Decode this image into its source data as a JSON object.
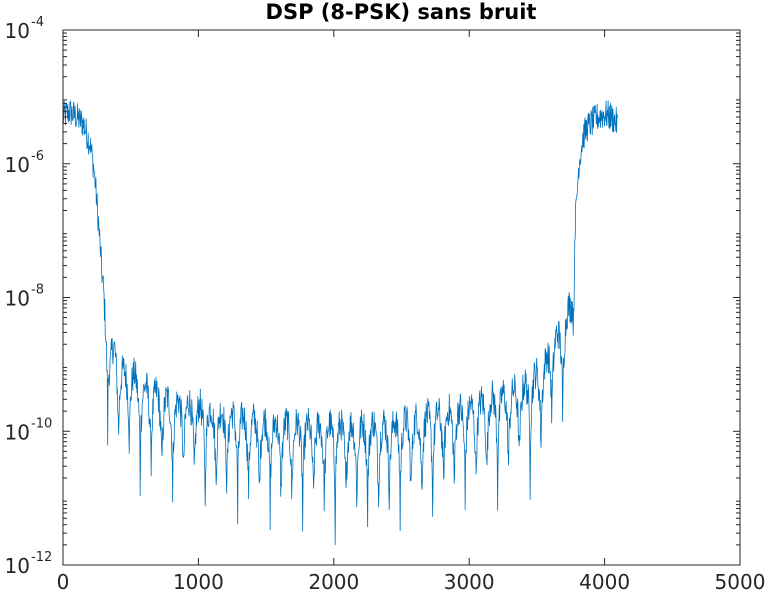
{
  "chart_data": {
    "type": "line",
    "title": "DSP (8-PSK) sans bruit",
    "xlabel": "",
    "ylabel": "",
    "xlim": [
      0,
      5000
    ],
    "ylim": [
      1e-12,
      0.0001
    ],
    "yscale": "log",
    "grid": false,
    "line_color": "#0072BD",
    "x_ticks": [
      0,
      1000,
      2000,
      3000,
      4000,
      5000
    ],
    "x_tick_labels": [
      "0",
      "1000",
      "2000",
      "3000",
      "4000",
      "5000"
    ],
    "y_ticks": [
      1e-12,
      1e-10,
      1e-08,
      1e-06,
      0.0001
    ],
    "y_tick_labels": [
      {
        "base": "10",
        "exp": "-12"
      },
      {
        "base": "10",
        "exp": "-10"
      },
      {
        "base": "10",
        "exp": "-8"
      },
      {
        "base": "10",
        "exp": "-6"
      },
      {
        "base": "10",
        "exp": "-4"
      }
    ],
    "series": [
      {
        "x": [
          0,
          50,
          100,
          150,
          200,
          230,
          260,
          290,
          320,
          350,
          380,
          420,
          460,
          500,
          550,
          600,
          700,
          800,
          900,
          1000,
          1100,
          1200,
          1300,
          1400,
          1500,
          1600,
          1700,
          1800,
          1900,
          2000,
          2100,
          2200,
          2300,
          2400,
          2500,
          2600,
          2700,
          2800,
          2900,
          3000,
          3100,
          3200,
          3300,
          3400,
          3500,
          3550,
          3600,
          3650,
          3700,
          3750,
          3780,
          3810,
          3840,
          3870,
          3900,
          3950,
          4000,
          4050,
          4095
        ],
        "y": [
          5e-06,
          6e-06,
          5e-06,
          4e-06,
          2e-06,
          8e-07,
          1.5e-07,
          2e-08,
          5e-09,
          1.5e-09,
          2e-09,
          1e-09,
          8e-10,
          9e-10,
          6e-10,
          5e-10,
          4e-10,
          3e-10,
          3e-10,
          2.5e-10,
          2.2e-10,
          2e-10,
          1.8e-10,
          1.6e-10,
          1.5e-10,
          1.4e-10,
          1.4e-10,
          1.3e-10,
          1.3e-10,
          1.3e-10,
          1.3e-10,
          1.3e-10,
          1.4e-10,
          1.4e-10,
          1.5e-10,
          1.6e-10,
          1.8e-10,
          2e-10,
          2.2e-10,
          2.5e-10,
          3e-10,
          3.5e-10,
          4e-10,
          5e-10,
          8e-10,
          1e-09,
          2e-09,
          3e-09,
          4e-09,
          1e-08,
          1e-07,
          1e-06,
          2.5e-06,
          3.5e-06,
          4e-06,
          5e-06,
          5.5e-06,
          5e-06,
          4e-06
        ]
      }
    ]
  }
}
